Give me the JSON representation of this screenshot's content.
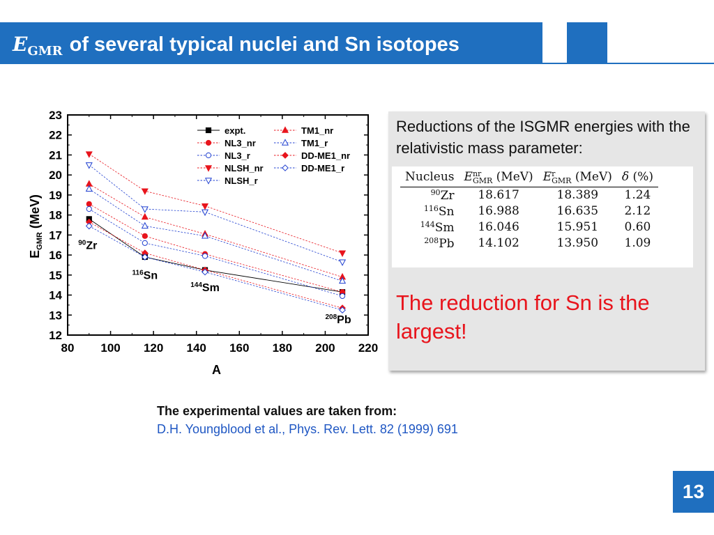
{
  "header": {
    "title_symbol": "E",
    "title_subscript": "GMR",
    "title_text": "of several typical nuclei and Sn isotopes"
  },
  "chart_data": {
    "type": "line",
    "xlabel": "A",
    "ylabel_main": "E",
    "ylabel_sub": "GMR",
    "ylabel_unit": " (MeV)",
    "xlim": [
      80,
      220
    ],
    "ylim": [
      12,
      23
    ],
    "xticks": [
      80,
      100,
      120,
      140,
      160,
      180,
      200,
      220
    ],
    "yticks": [
      12,
      13,
      14,
      15,
      16,
      17,
      18,
      19,
      20,
      21,
      22,
      23
    ],
    "x": [
      90,
      116,
      144,
      208
    ],
    "nucleus_labels": [
      {
        "mass": "90",
        "symbol": "Zr",
        "x": 90,
        "y": 16.3
      },
      {
        "mass": "116",
        "symbol": "Sn",
        "x": 116,
        "y": 14.8
      },
      {
        "mass": "144",
        "symbol": "Sm",
        "x": 144,
        "y": 14.2
      },
      {
        "mass": "208",
        "symbol": "Pb",
        "x": 208,
        "y": 12.6
      }
    ],
    "legend_position": "top-right",
    "series": [
      {
        "name": "expt.",
        "values": [
          17.8,
          15.9,
          15.25,
          14.15
        ],
        "color": "#000000",
        "marker": "square",
        "filled": true,
        "dashed": false
      },
      {
        "name": "NL3_nr",
        "values": [
          18.55,
          16.95,
          16.05,
          14.15
        ],
        "color": "#e8141c",
        "marker": "circle",
        "filled": true,
        "dashed": true
      },
      {
        "name": "NL3_r",
        "values": [
          18.3,
          16.6,
          15.95,
          13.95
        ],
        "color": "#1f3fd0",
        "marker": "circle",
        "filled": false,
        "dashed": true
      },
      {
        "name": "NLSH_nr",
        "values": [
          21.05,
          19.2,
          18.45,
          16.1
        ],
        "color": "#e8141c",
        "marker": "tri-down",
        "filled": true,
        "dashed": true
      },
      {
        "name": "NLSH_r",
        "values": [
          20.5,
          18.3,
          18.15,
          15.65
        ],
        "color": "#1f3fd0",
        "marker": "tri-down",
        "filled": false,
        "dashed": true
      },
      {
        "name": "TM1_nr",
        "values": [
          19.55,
          17.9,
          17.05,
          14.9
        ],
        "color": "#e8141c",
        "marker": "tri-up",
        "filled": true,
        "dashed": true
      },
      {
        "name": "TM1_r",
        "values": [
          19.3,
          17.45,
          16.95,
          14.7
        ],
        "color": "#1f3fd0",
        "marker": "tri-up",
        "filled": false,
        "dashed": true
      },
      {
        "name": "DD-ME1_nr",
        "values": [
          17.65,
          16.1,
          15.25,
          13.35
        ],
        "color": "#e8141c",
        "marker": "diamond",
        "filled": true,
        "dashed": true
      },
      {
        "name": "DD-ME1_r",
        "values": [
          17.45,
          15.9,
          15.15,
          13.25
        ],
        "color": "#1f3fd0",
        "marker": "diamond",
        "filled": false,
        "dashed": true
      }
    ]
  },
  "info": {
    "text": "Reductions of the ISGMR energies with the relativistic mass parameter:",
    "table": {
      "headers": {
        "nucleus": "Nucleus",
        "e_nr_symbol": "E",
        "e_nr_sup": "nr",
        "e_nr_sub": "GMR",
        "e_nr_unit": " (MeV)",
        "e_r_symbol": "E",
        "e_r_sup": "r",
        "e_r_sub": "GMR",
        "e_r_unit": " (MeV)",
        "delta_symbol": "δ",
        "delta_unit": " (%)"
      },
      "rows": [
        {
          "mass": "90",
          "symbol": "Zr",
          "e_nr": "18.617",
          "e_r": "18.389",
          "delta": "1.24"
        },
        {
          "mass": "116",
          "symbol": "Sn",
          "e_nr": "16.988",
          "e_r": "16.635",
          "delta": "2.12"
        },
        {
          "mass": "144",
          "symbol": "Sm",
          "e_nr": "16.046",
          "e_r": "15.951",
          "delta": "0.60"
        },
        {
          "mass": "208",
          "symbol": "Pb",
          "e_nr": "14.102",
          "e_r": "13.950",
          "delta": "1.09"
        }
      ]
    },
    "conclusion": "The reduction for Sn is the largest!"
  },
  "reference": {
    "heading": "The experimental values are taken from:",
    "citation": "D.H. Youngblood et al., Phys. Rev. Lett. 82 (1999) 691"
  },
  "page_number": "13",
  "colors": {
    "brand_blue": "#1f6fbf",
    "highlight_red": "#e8141c",
    "link_blue": "#1f57c3"
  }
}
